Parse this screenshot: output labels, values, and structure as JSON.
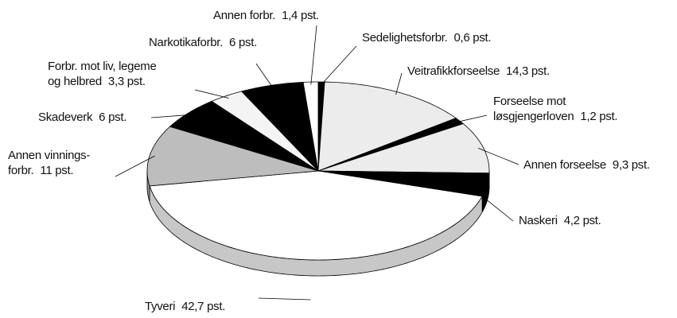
{
  "chart_data": {
    "type": "pie3d",
    "categories": [
      "Sedelighetsforbr.",
      "Veitrafikkforseelse",
      "Forseelse mot\nløsgjengerloven",
      "Annen forseelse",
      "Naskeri",
      "Tyveri",
      "Annen vinnings-\nforbr.",
      "Skadeverk",
      "Forbr. mot liv, legeme\nog helbred",
      "Narkotikaforbr.",
      "Annen forbr."
    ],
    "values": [
      0.6,
      14.3,
      1.2,
      9.3,
      4.2,
      42.7,
      11,
      6,
      3.3,
      6,
      1.4
    ],
    "value_labels": [
      "0,6 pst.",
      "14,3 pst.",
      "1,2 pst.",
      "9,3 pst.",
      "4,2 pst.",
      "42,7 pst.",
      "11 pst.",
      "6 pst.",
      "3,3 pst.",
      "6 pst.",
      "1,4 pst."
    ],
    "colors": [
      "#000000",
      "#ececec",
      "#000000",
      "#ececec",
      "#000000",
      "#ffffff",
      "#bdbdbd",
      "#000000",
      "#f4f4f4",
      "#000000",
      "#ffffff"
    ]
  }
}
